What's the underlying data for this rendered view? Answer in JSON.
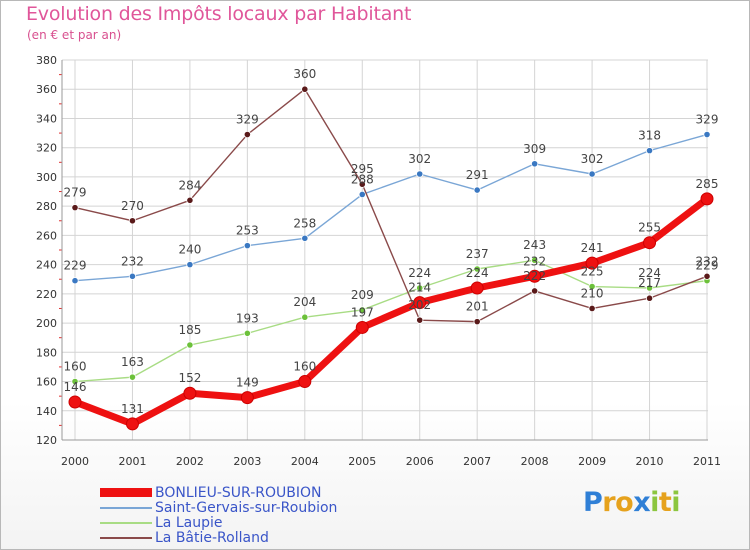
{
  "header": {
    "title": "Evolution des Impôts locaux par Habitant",
    "subtitle": "(en € et par an)"
  },
  "logo": {
    "text": "Proxiti",
    "letters": [
      {
        "ch": "P",
        "color": "#2f7fd6"
      },
      {
        "ch": "r",
        "color": "#e6a21d"
      },
      {
        "ch": "o",
        "color": "#e6a21d"
      },
      {
        "ch": "x",
        "color": "#2f7fd6"
      },
      {
        "ch": "i",
        "color": "#8cc63f"
      },
      {
        "ch": "t",
        "color": "#e6a21d"
      },
      {
        "ch": "i",
        "color": "#8cc63f"
      }
    ]
  },
  "chart_data": {
    "type": "line",
    "title": "Evolution des Impôts locaux par Habitant",
    "subtitle": "(en € et par an)",
    "xlabel": "",
    "ylabel": "",
    "categories": [
      "2000",
      "2001",
      "2002",
      "2003",
      "2004",
      "2005",
      "2006",
      "2007",
      "2008",
      "2009",
      "2010",
      "2011"
    ],
    "ylim": [
      120,
      380
    ],
    "yticks": [
      120,
      140,
      160,
      180,
      200,
      220,
      240,
      260,
      280,
      300,
      320,
      340,
      360,
      380
    ],
    "grid": true,
    "legend_position": "bottom-left",
    "series": [
      {
        "name": "BONLIEU-SUR-ROUBION",
        "color": "#ee1111",
        "marker_color": "#cc0000",
        "bold": true,
        "values": [
          146,
          131,
          152,
          149,
          160,
          197,
          214,
          224,
          232,
          241,
          255,
          285
        ],
        "labels": [
          "146",
          "131",
          "152",
          "149",
          "160",
          "197",
          "214",
          "224",
          "232",
          "241",
          "255",
          "285"
        ]
      },
      {
        "name": "Saint-Gervais-sur-Roubion",
        "color": "#7aa6d6",
        "marker_color": "#3a78c2",
        "bold": false,
        "values": [
          229,
          232,
          240,
          253,
          258,
          288,
          302,
          291,
          309,
          302,
          318,
          329
        ],
        "labels": [
          "229",
          "232",
          "240",
          "253",
          "258",
          "288",
          "302",
          "291",
          "309",
          "302",
          "318",
          "329"
        ]
      },
      {
        "name": "La Laupie",
        "color": "#a8dc84",
        "marker_color": "#6cc13a",
        "bold": false,
        "values": [
          160,
          163,
          185,
          193,
          204,
          209,
          224,
          237,
          243,
          225,
          224,
          229
        ],
        "labels": [
          "160",
          "163",
          "185",
          "193",
          "204",
          "209",
          "224",
          "237",
          "243",
          "225",
          "224",
          "229"
        ]
      },
      {
        "name": "La Bâtie-Rolland",
        "color": "#8a4a4a",
        "marker_color": "#5a1a1a",
        "bold": false,
        "values": [
          279,
          270,
          284,
          329,
          360,
          295,
          202,
          201,
          222,
          210,
          217,
          232
        ],
        "labels": [
          "279",
          "270",
          "284",
          "329",
          "360",
          "295",
          "202",
          "201",
          "222",
          "210",
          "217",
          "232"
        ]
      }
    ]
  }
}
